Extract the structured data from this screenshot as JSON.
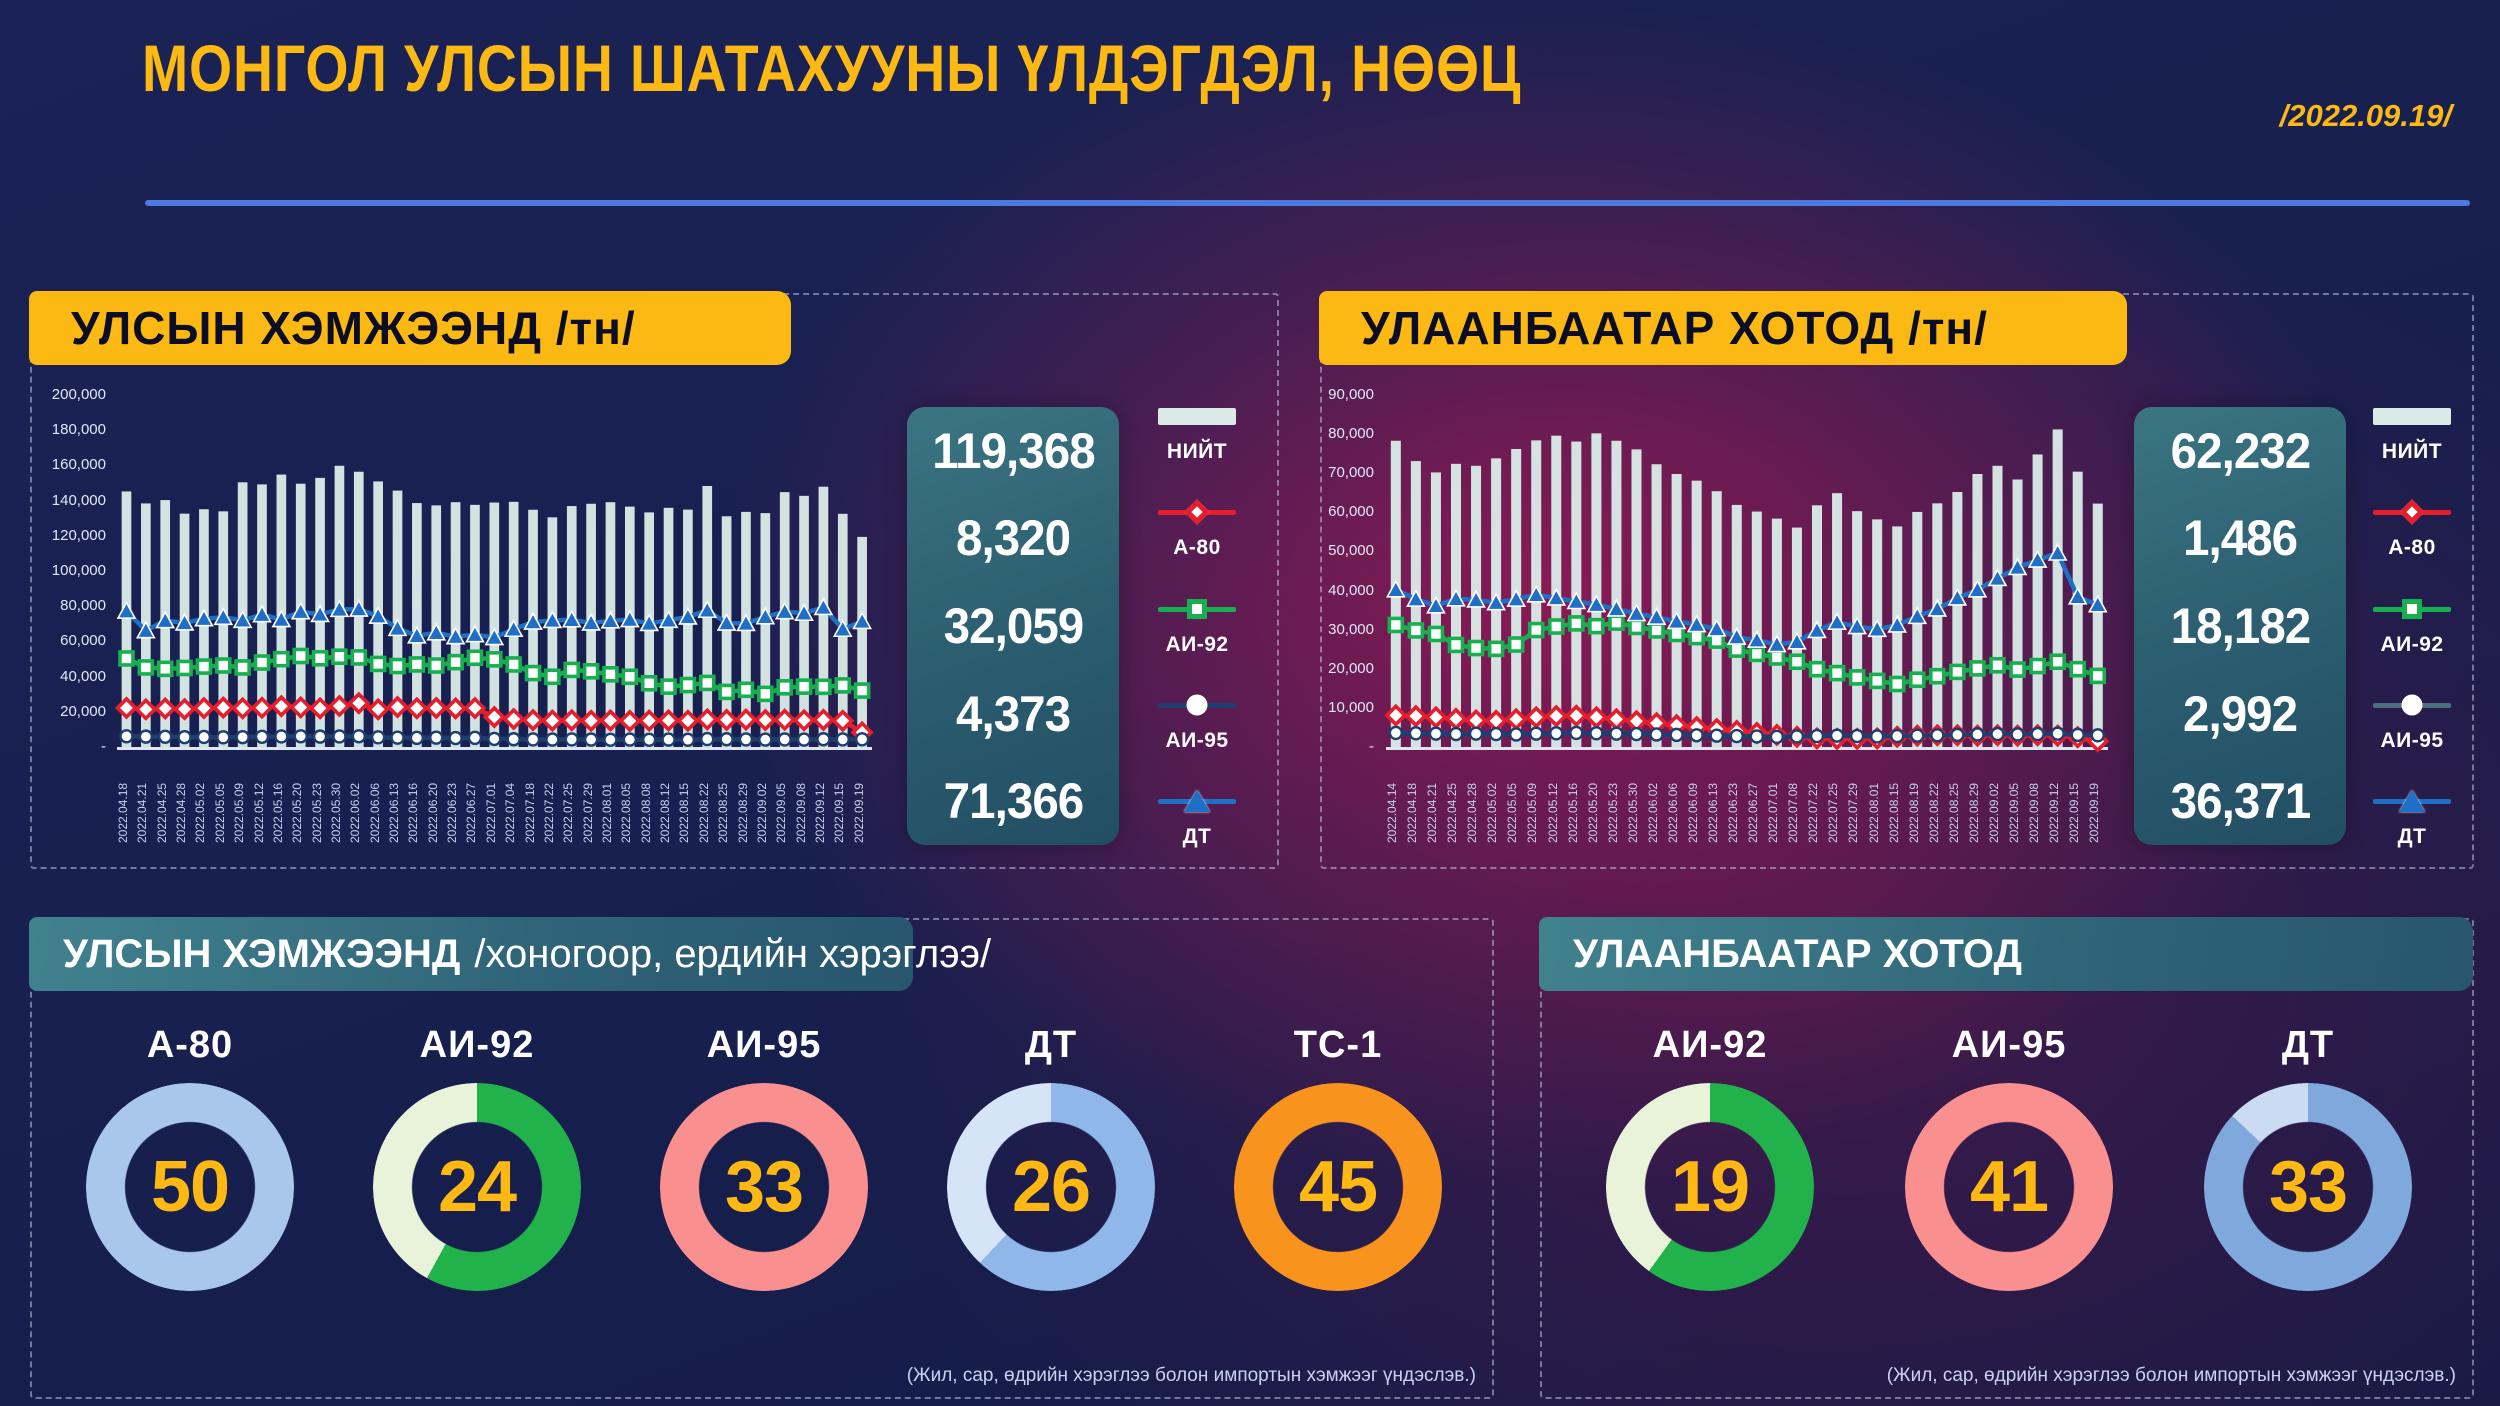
{
  "header": {
    "title": "МОНГОЛ УЛСЫН ШАТАХУУНЫ ҮЛДЭГДЭЛ, НӨӨЦ",
    "date": "/2022.09.19/"
  },
  "panels": {
    "national": {
      "header": "УЛСЫН ХЭМЖЭЭНД  /тн/",
      "totals": {
        "niit": "119,368",
        "a80": "8,320",
        "ai92": "32,059",
        "ai95": "4,373",
        "dt": "71,366"
      },
      "legend": [
        {
          "label": "НИЙТ"
        },
        {
          "label": "А-80"
        },
        {
          "label": "АИ-92"
        },
        {
          "label": "АИ-95"
        },
        {
          "label": "ДТ"
        }
      ]
    },
    "ulaanbaatar": {
      "header": "УЛААНБААТАР ХОТОД  /тн/",
      "totals": {
        "niit": "62,232",
        "a80": "1,486",
        "ai92": "18,182",
        "ai95": "2,992",
        "dt": "36,371"
      },
      "legend": [
        {
          "label": "НИЙТ"
        },
        {
          "label": "А-80"
        },
        {
          "label": "АИ-92"
        },
        {
          "label": "АИ-95"
        },
        {
          "label": "ДТ"
        }
      ]
    }
  },
  "colors": {
    "accent_yellow": "#FCB813",
    "bar_total": "#D9EAE7",
    "a80_red": "#E71D2B",
    "ai92_green": "#17AF4F",
    "ai95_navy": "#1C3E70",
    "dt_blue": "#1F6FC8",
    "divider_blue": "#4E79DF"
  },
  "chart_data": [
    {
      "type": "bar-line",
      "title": "УЛСЫН ХЭМЖЭЭНД /тн/",
      "ylim": [
        0,
        200000
      ],
      "yticks": [
        "200,000",
        "180,000",
        "160,000",
        "140,000",
        "120,000",
        "100,000",
        "80,000",
        "60,000",
        "40,000",
        "20,000",
        "-"
      ],
      "legend_position": "right",
      "grid": false,
      "categories": [
        "2022.04.18",
        "2022.04.21",
        "2022.04.25",
        "2022.04.28",
        "2022.05.02",
        "2022.05.05",
        "2022.05.09",
        "2022.05.12",
        "2022.05.16",
        "2022.05.20",
        "2022.05.23",
        "2022.05.30",
        "2022.06.02",
        "2022.06.06",
        "2022.06.13",
        "2022.06.16",
        "2022.06.20",
        "2022.06.23",
        "2022.06.27",
        "2022.07.01",
        "2022.07.04",
        "2022.07.18",
        "2022.07.22",
        "2022.07.25",
        "2022.07.29",
        "2022.08.01",
        "2022.08.05",
        "2022.08.08",
        "2022.08.12",
        "2022.08.15",
        "2022.08.22",
        "2022.08.25",
        "2022.08.29",
        "2022.09.02",
        "2022.09.05",
        "2022.09.08",
        "2022.09.12",
        "2022.09.15",
        "2022.09.19"
      ],
      "bar_series": {
        "name": "НИЙТ",
        "color": "#D9EAE7",
        "values": [
          145200,
          138400,
          140300,
          132600,
          135100,
          133900,
          150400,
          149200,
          154800,
          149600,
          152900,
          159800,
          156400,
          150900,
          145700,
          138600,
          137300,
          139100,
          137600,
          138900,
          139300,
          134800,
          130500,
          136900,
          138200,
          139100,
          136600,
          133300,
          135900,
          134900,
          148300,
          131100,
          133600,
          132900,
          144800,
          142700,
          147900,
          132500,
          119368
        ]
      },
      "line_series": [
        {
          "name": "А-80",
          "color": "#E71D2B",
          "marker": "diamond",
          "values": [
            22200,
            21400,
            21900,
            21500,
            22100,
            22400,
            22000,
            22300,
            23200,
            22500,
            22000,
            23300,
            24900,
            21400,
            22700,
            22000,
            22200,
            21900,
            22100,
            17000,
            15900,
            15300,
            15000,
            15200,
            14900,
            15100,
            14800,
            15000,
            15100,
            14900,
            15700,
            15400,
            15600,
            15300,
            15500,
            15200,
            15400,
            14900,
            8320
          ]
        },
        {
          "name": "АИ-92",
          "color": "#17AF4F",
          "marker": "square",
          "values": [
            50300,
            45200,
            44400,
            44900,
            45700,
            46300,
            45200,
            48000,
            49900,
            51700,
            50400,
            51300,
            50900,
            47200,
            46000,
            46900,
            46300,
            48200,
            50700,
            49800,
            46900,
            42000,
            39900,
            43800,
            43000,
            41300,
            39900,
            36200,
            34300,
            35200,
            36400,
            31300,
            32500,
            30200,
            33900,
            34300,
            34200,
            35000,
            32059
          ]
        },
        {
          "name": "АИ-95",
          "color": "#1C3E70",
          "marker": "circle",
          "values": [
            6100,
            5900,
            5800,
            5600,
            5700,
            5500,
            5600,
            5800,
            6000,
            6100,
            5900,
            6000,
            6100,
            5500,
            5300,
            5200,
            5300,
            5100,
            5200,
            4600,
            4400,
            4300,
            4200,
            4300,
            4200,
            4100,
            4200,
            4100,
            4200,
            4100,
            4500,
            4400,
            4300,
            4200,
            4300,
            4200,
            4400,
            4300,
            4373
          ]
        },
        {
          "name": "ДТ",
          "color": "#1F6FC8",
          "marker": "triangle",
          "values": [
            77200,
            66100,
            71800,
            70500,
            72900,
            73700,
            72000,
            75200,
            72400,
            76900,
            75300,
            78200,
            78400,
            74300,
            67400,
            63200,
            64900,
            62700,
            63800,
            62200,
            66900,
            71000,
            71900,
            72300,
            70500,
            71700,
            72400,
            70200,
            72000,
            73900,
            77700,
            70400,
            70200,
            74000,
            76900,
            76000,
            79300,
            66900,
            71366
          ]
        }
      ]
    },
    {
      "type": "bar-line",
      "title": "УЛААНБААТАР ХОТОД /тн/",
      "ylim": [
        0,
        90000
      ],
      "yticks": [
        "90,000",
        "80,000",
        "70,000",
        "60,000",
        "50,000",
        "40,000",
        "30,000",
        "20,000",
        "10,000",
        "-"
      ],
      "legend_position": "right",
      "grid": false,
      "categories": [
        "2022.04.14",
        "2022.04.18",
        "2022.04.21",
        "2022.04.25",
        "2022.04.28",
        "2022.05.02",
        "2022.05.05",
        "2022.05.09",
        "2022.05.12",
        "2022.05.16",
        "2022.05.20",
        "2022.05.23",
        "2022.05.30",
        "2022.06.02",
        "2022.06.06",
        "2022.06.09",
        "2022.06.13",
        "2022.06.23",
        "2022.06.27",
        "2022.07.01",
        "2022.07.08",
        "2022.07.22",
        "2022.07.25",
        "2022.07.29",
        "2022.08.01",
        "2022.08.15",
        "2022.08.19",
        "2022.08.22",
        "2022.08.25",
        "2022.08.29",
        "2022.09.02",
        "2022.09.05",
        "2022.09.08",
        "2022.09.12",
        "2022.09.15",
        "2022.09.19"
      ],
      "bar_series": {
        "name": "НИЙТ",
        "color": "#D9EAE7",
        "values": [
          78300,
          73100,
          70200,
          72400,
          71900,
          73800,
          76200,
          78400,
          79600,
          78100,
          80200,
          78300,
          76100,
          72300,
          69800,
          68100,
          65400,
          61900,
          60200,
          58400,
          56100,
          61800,
          64900,
          60300,
          58200,
          56400,
          60100,
          62300,
          65200,
          69800,
          71900,
          68400,
          74800,
          81200,
          70400,
          62232
        ]
      },
      "line_series": [
        {
          "name": "А-80",
          "color": "#E71D2B",
          "marker": "diamond",
          "values": [
            8100,
            7900,
            7600,
            7200,
            6800,
            6700,
            7100,
            7600,
            7900,
            8000,
            7600,
            7100,
            6600,
            6100,
            5600,
            5100,
            4600,
            4100,
            3600,
            3100,
            2600,
            2200,
            2100,
            2100,
            2200,
            2600,
            2900,
            3000,
            3000,
            2900,
            3000,
            2900,
            3000,
            2900,
            2500,
            1486
          ]
        },
        {
          "name": "АИ-92",
          "color": "#17AF4F",
          "marker": "square",
          "values": [
            31200,
            29800,
            28900,
            26100,
            25300,
            25100,
            26200,
            29900,
            30800,
            31600,
            30900,
            31800,
            30700,
            29800,
            28900,
            28100,
            27200,
            24900,
            23800,
            22900,
            21800,
            19900,
            18900,
            17800,
            16900,
            16100,
            17200,
            18100,
            19200,
            20100,
            20900,
            19800,
            20700,
            21800,
            19900,
            18182
          ]
        },
        {
          "name": "АИ-95",
          "color": "#1C3E70",
          "marker": "circle",
          "values": [
            3600,
            3500,
            3400,
            3300,
            3400,
            3300,
            3200,
            3400,
            3500,
            3600,
            3500,
            3400,
            3300,
            3200,
            3100,
            3000,
            2900,
            2800,
            2700,
            2600,
            2700,
            2800,
            2900,
            2800,
            2700,
            2800,
            2900,
            3000,
            3100,
            3200,
            3300,
            3200,
            3300,
            3400,
            3100,
            2992
          ]
        },
        {
          "name": "ДТ",
          "color": "#1F6FC8",
          "marker": "triangle",
          "values": [
            40200,
            37800,
            36100,
            37900,
            37600,
            36900,
            37800,
            38900,
            38100,
            37200,
            36400,
            35300,
            34100,
            33200,
            32100,
            31300,
            30200,
            28100,
            27300,
            26200,
            26900,
            29800,
            31900,
            30800,
            30100,
            31200,
            33400,
            35300,
            38100,
            40200,
            43100,
            45900,
            47800,
            49600,
            38400,
            36371
          ]
        }
      ]
    }
  ],
  "sections": {
    "national_days": {
      "header_bold": "УЛСЫН ХЭМЖЭЭНД",
      "header_rest": "/хоногоор, ердийн хэрэглээ/",
      "donuts": [
        {
          "label": "А-80",
          "value": "50",
          "pct": 100,
          "color": "#A9C7EA",
          "rest": "#A9C7EA"
        },
        {
          "label": "АИ-92",
          "value": "24",
          "pct": 58,
          "color": "#21B24B",
          "rest": "#E9F3DA"
        },
        {
          "label": "АИ-95",
          "value": "33",
          "pct": 100,
          "color": "#F9908F",
          "rest": "#F9908F"
        },
        {
          "label": "ДТ",
          "value": "26",
          "pct": 62,
          "color": "#8FB7EA",
          "rest": "#D6E4F7"
        },
        {
          "label": "ТС-1",
          "value": "45",
          "pct": 100,
          "color": "#F8941E",
          "rest": "#F8941E"
        }
      ],
      "footnote": "(Жил, сар, өдрийн хэрэглээ болон импортын хэмжээг үндэслэв.)"
    },
    "ub_days": {
      "header": "УЛААНБААТАР ХОТОД",
      "donuts": [
        {
          "label": "АИ-92",
          "value": "19",
          "pct": 60,
          "color": "#21B24B",
          "rest": "#E9F3DA"
        },
        {
          "label": "АИ-95",
          "value": "41",
          "pct": 100,
          "color": "#F9908F",
          "rest": "#F9908F"
        },
        {
          "label": "ДТ",
          "value": "33",
          "pct": 87,
          "color": "#7FA8DC",
          "rest": "#CBDBF2"
        }
      ],
      "footnote": "(Жил, сар, өдрийн хэрэглээ болон импортын хэмжээг үндэслэв.)"
    }
  }
}
